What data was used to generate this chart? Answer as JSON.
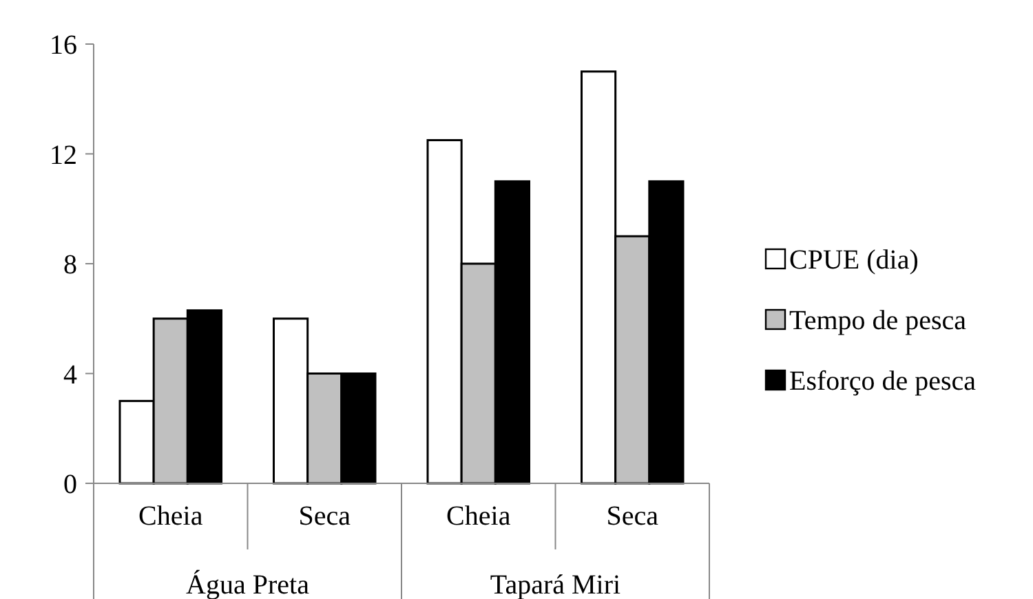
{
  "chart_data": {
    "type": "bar",
    "categories": [
      "Cheia",
      "Seca",
      "Cheia",
      "Seca"
    ],
    "series": [
      {
        "name": "CPUE (dia)",
        "color": "#ffffff",
        "values": [
          3,
          6,
          12.5,
          15
        ]
      },
      {
        "name": "Tempo de pesca",
        "color": "#c0c0c0",
        "values": [
          6,
          4,
          8,
          9
        ]
      },
      {
        "name": "Esforço de pesca",
        "color": "#000000",
        "values": [
          6.3,
          4,
          11,
          11
        ]
      }
    ],
    "annotations": [
      "Água Preta",
      "Tapará Miri"
    ],
    "ylim": [
      0,
      16
    ],
    "yticks": [
      0,
      4,
      8,
      12,
      16
    ],
    "grid": false,
    "legend": "right"
  }
}
